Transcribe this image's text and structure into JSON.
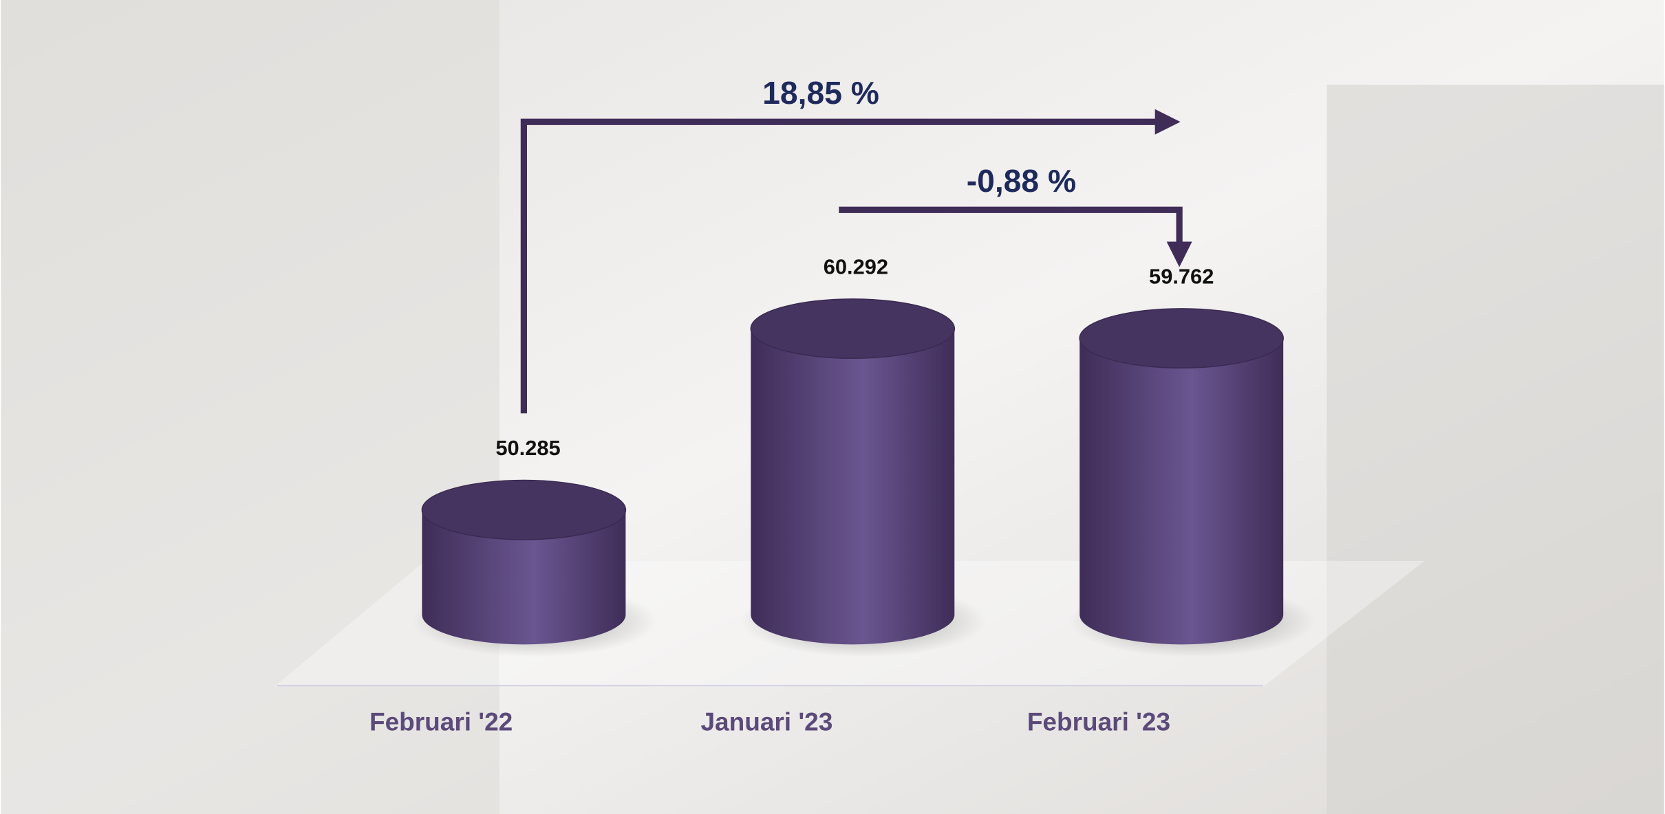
{
  "chart_data": {
    "type": "bar",
    "categories": [
      "Februari '22",
      "Januari '23",
      "Februari '23"
    ],
    "values": [
      50285,
      60292,
      59762
    ],
    "value_labels": [
      "50.285",
      "60.292",
      "59.762"
    ],
    "color": "#5e4a82",
    "ylim": [
      44500,
      61000
    ],
    "annotations": [
      "18,85 %",
      "-0,88 %"
    ]
  }
}
